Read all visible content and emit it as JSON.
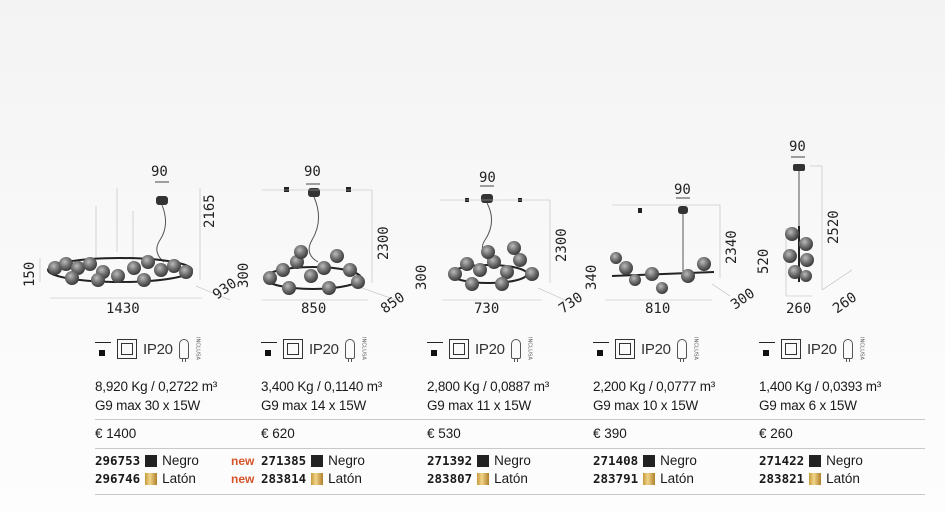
{
  "products": [
    {
      "dims": {
        "d1": "90",
        "d2": "2165",
        "d3": "150",
        "d4": "1430",
        "d5": "930"
      },
      "ip": "IP20",
      "incl": "INCLUSA",
      "weight": "8,920 Kg / 0,2722 m³",
      "bulb": "G9 max 30 x 15W",
      "price": "€ 1400",
      "codes": [
        {
          "code": "296753",
          "finish": "Negro",
          "swatch": "black",
          "new": ""
        },
        {
          "code": "296746",
          "finish": "Latón",
          "swatch": "brass",
          "new": ""
        }
      ]
    },
    {
      "dims": {
        "d1": "90",
        "d2": "2300",
        "d3": "300",
        "d4": "850",
        "d5": "850"
      },
      "ip": "IP20",
      "incl": "INCLUSA",
      "weight": "3,400 Kg / 0,1140 m³",
      "bulb": "G9 max 14 x 15W",
      "price": "€ 620",
      "codes": [
        {
          "code": "271385",
          "finish": "Negro",
          "swatch": "black",
          "new": "new"
        },
        {
          "code": "283814",
          "finish": "Latón",
          "swatch": "brass",
          "new": "new"
        }
      ]
    },
    {
      "dims": {
        "d1": "90",
        "d2": "2300",
        "d3": "300",
        "d4": "730",
        "d5": "730"
      },
      "ip": "IP20",
      "incl": "INCLUSA",
      "weight": "2,800 Kg / 0,0887 m³",
      "bulb": "G9 max 11 x 15W",
      "price": "€ 530",
      "codes": [
        {
          "code": "271392",
          "finish": "Negro",
          "swatch": "black",
          "new": ""
        },
        {
          "code": "283807",
          "finish": "Latón",
          "swatch": "brass",
          "new": ""
        }
      ]
    },
    {
      "dims": {
        "d1": "90",
        "d2": "2340",
        "d3": "340",
        "d4": "810",
        "d5": "300"
      },
      "ip": "IP20",
      "incl": "INCLUSA",
      "weight": "2,200 Kg / 0,0777 m³",
      "bulb": "G9 max 10 x 15W",
      "price": "€ 390",
      "codes": [
        {
          "code": "271408",
          "finish": "Negro",
          "swatch": "black",
          "new": ""
        },
        {
          "code": "283791",
          "finish": "Latón",
          "swatch": "brass",
          "new": ""
        }
      ]
    },
    {
      "dims": {
        "d1": "90",
        "d2": "2520",
        "d3": "520",
        "d4": "260",
        "d5": "260"
      },
      "ip": "IP20",
      "incl": "INCLUSA",
      "weight": "1,400 Kg / 0,0393 m³",
      "bulb": "G9 max 6 x 15W",
      "price": "€ 260",
      "codes": [
        {
          "code": "271422",
          "finish": "Negro",
          "swatch": "black",
          "new": ""
        },
        {
          "code": "283821",
          "finish": "Latón",
          "swatch": "brass",
          "new": ""
        }
      ]
    }
  ]
}
